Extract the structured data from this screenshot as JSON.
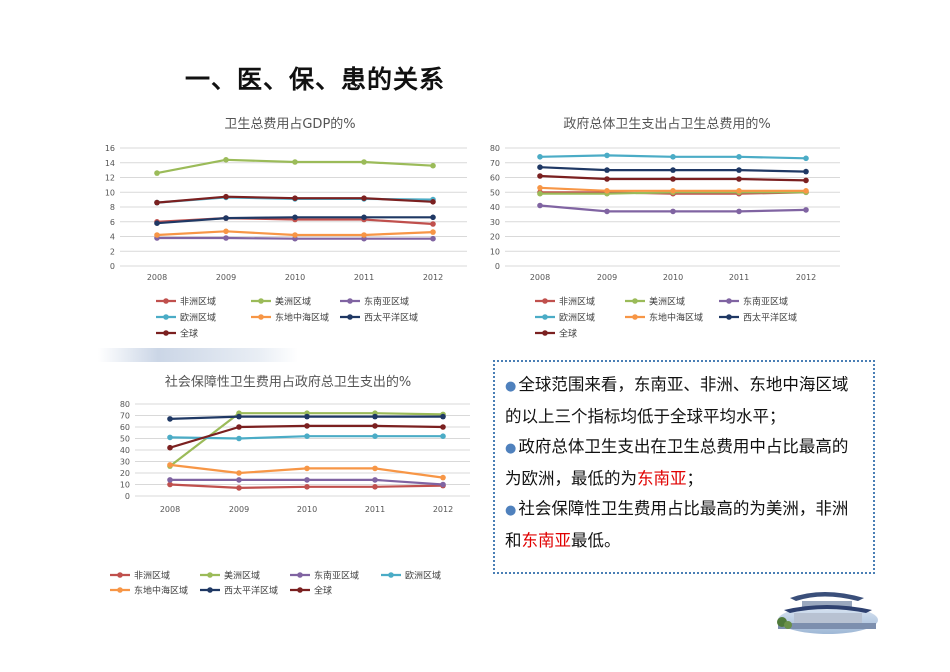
{
  "slide": {
    "title": "一、医、保、患的关系"
  },
  "colors": {
    "非洲区域": "#c0504d",
    "美洲区域": "#9bbb59",
    "东南亚区域": "#8064a2",
    "欧洲区域": "#4bacc6",
    "东地中海区域": "#f79646",
    "西太平洋区域": "#1f3864",
    "全球": "#7b2020",
    "note_bullet": "#4f81bd",
    "note_highlight": "#e00000",
    "note_border": "#4a7fb5"
  },
  "chart_data": [
    {
      "type": "line",
      "title": "卫生总费用占GDP的%",
      "categories": [
        "2008",
        "2009",
        "2010",
        "2011",
        "2012"
      ],
      "ylim": [
        0,
        16
      ],
      "yticks": [
        "0",
        "2",
        "4",
        "6",
        "8",
        "10",
        "12",
        "14",
        "16"
      ],
      "grid": true,
      "legend_position": "bottom",
      "series": [
        {
          "name": "非洲区域",
          "values": [
            6.0,
            6.5,
            6.3,
            6.3,
            5.7
          ]
        },
        {
          "name": "美洲区域",
          "values": [
            12.6,
            14.4,
            14.1,
            14.1,
            13.6
          ]
        },
        {
          "name": "东南亚区域",
          "values": [
            3.8,
            3.8,
            3.7,
            3.7,
            3.7
          ]
        },
        {
          "name": "欧洲区域",
          "values": [
            8.6,
            9.3,
            9.1,
            9.1,
            9.0
          ]
        },
        {
          "name": "东地中海区域",
          "values": [
            4.2,
            4.7,
            4.2,
            4.2,
            4.6
          ]
        },
        {
          "name": "西太平洋区域",
          "values": [
            5.8,
            6.5,
            6.6,
            6.6,
            6.6
          ]
        },
        {
          "name": "全球",
          "values": [
            8.6,
            9.4,
            9.2,
            9.2,
            8.7
          ]
        }
      ]
    },
    {
      "type": "line",
      "title": "政府总体卫生支出占卫生总费用的%",
      "categories": [
        "2008",
        "2009",
        "2010",
        "2011",
        "2012"
      ],
      "ylim": [
        0,
        80
      ],
      "yticks": [
        "0",
        "10",
        "20",
        "30",
        "40",
        "50",
        "60",
        "70",
        "80"
      ],
      "grid": true,
      "legend_position": "bottom",
      "series": [
        {
          "name": "非洲区域",
          "values": [
            50,
            50,
            49,
            49,
            50
          ]
        },
        {
          "name": "美洲区域",
          "values": [
            49,
            49,
            50,
            50,
            50
          ]
        },
        {
          "name": "东南亚区域",
          "values": [
            41,
            37,
            37,
            37,
            38
          ]
        },
        {
          "name": "欧洲区域",
          "values": [
            74,
            75,
            74,
            74,
            73
          ]
        },
        {
          "name": "东地中海区域",
          "values": [
            53,
            51,
            51,
            51,
            51
          ]
        },
        {
          "name": "西太平洋区域",
          "values": [
            67,
            65,
            65,
            65,
            64
          ]
        },
        {
          "name": "全球",
          "values": [
            61,
            59,
            59,
            59,
            58
          ]
        }
      ]
    },
    {
      "type": "line",
      "title": "社会保障性卫生费用占政府总卫生支出的%",
      "categories": [
        "2008",
        "2009",
        "2010",
        "2011",
        "2012"
      ],
      "ylim": [
        0,
        80
      ],
      "yticks": [
        "0",
        "10",
        "20",
        "30",
        "40",
        "50",
        "60",
        "70",
        "80"
      ],
      "grid": true,
      "legend_position": "bottom",
      "series": [
        {
          "name": "非洲区域",
          "values": [
            10,
            7,
            8,
            8,
            9
          ]
        },
        {
          "name": "美洲区域",
          "values": [
            26,
            72,
            72,
            72,
            71
          ]
        },
        {
          "name": "东南亚区域",
          "values": [
            14,
            14,
            14,
            14,
            10
          ]
        },
        {
          "name": "欧洲区域",
          "values": [
            51,
            50,
            52,
            52,
            52
          ]
        },
        {
          "name": "东地中海区域",
          "values": [
            27,
            20,
            24,
            24,
            16
          ]
        },
        {
          "name": "西太平洋区域",
          "values": [
            67,
            69,
            69,
            69,
            69
          ]
        },
        {
          "name": "全球",
          "values": [
            42,
            60,
            61,
            61,
            60
          ]
        }
      ]
    }
  ],
  "notes": [
    {
      "pre": "全球范围来看，东南亚、非洲、东地中海区域的以上三个指标均低于全球平均水平；",
      "hl": "",
      "post": ""
    },
    {
      "pre": "政府总体卫生支出在卫生总费用中占比最高的为欧洲，最低的为",
      "hl": "东南亚",
      "post": "；"
    },
    {
      "pre": "社会保障性卫生费用占比最高的为美洲，非洲和",
      "hl": "东南亚",
      "post": "最低。"
    }
  ]
}
